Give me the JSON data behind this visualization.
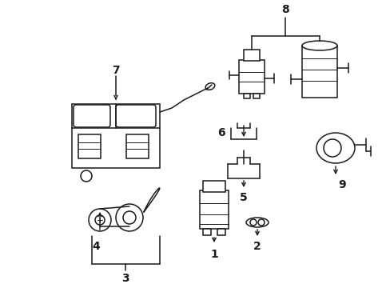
{
  "bg_color": "#ffffff",
  "line_color": "#1a1a1a",
  "fig_width": 4.89,
  "fig_height": 3.6,
  "dpi": 100,
  "font_size": 10,
  "lw": 1.1
}
